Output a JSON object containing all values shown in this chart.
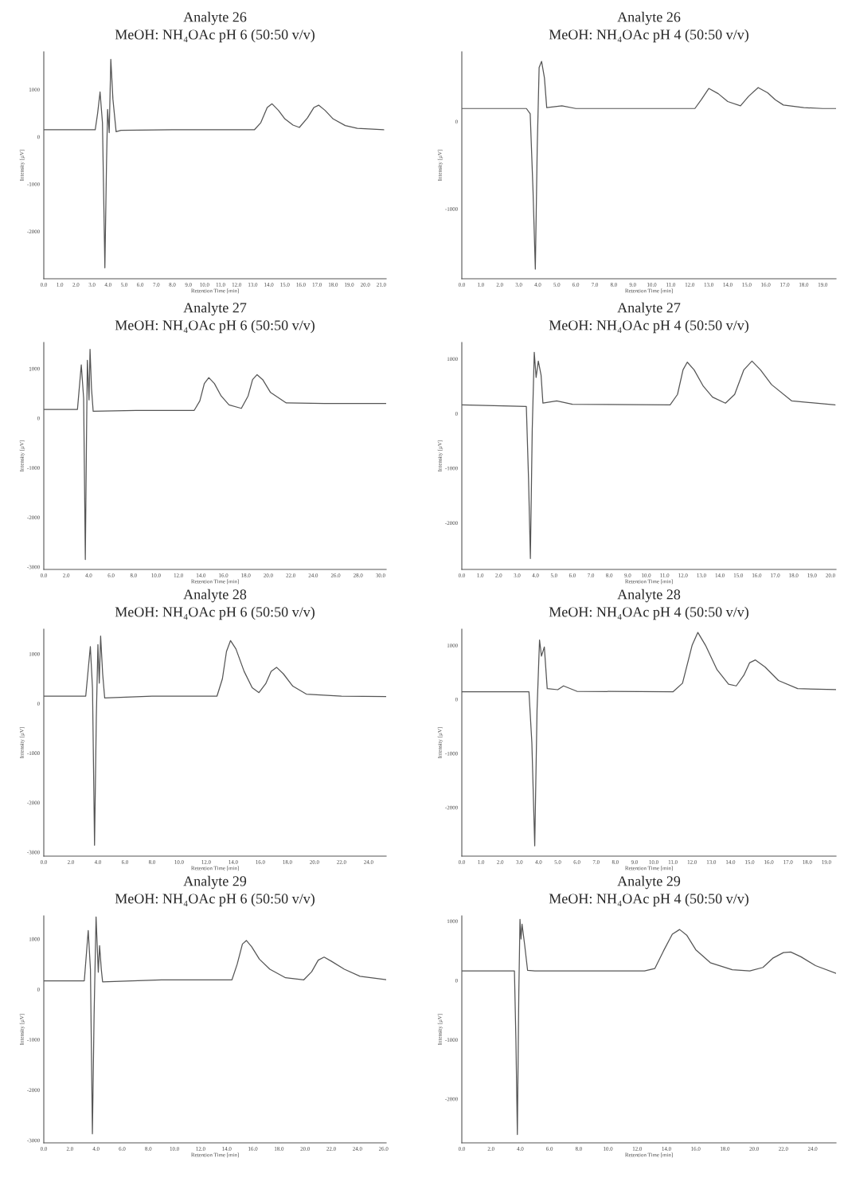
{
  "chart_data": [
    {
      "type": "line",
      "title": "Analyte 26",
      "subtitle": "MeOH: NH₄OAc pH 6 (50:50 v/v)",
      "xlabel": "Retention Time [min]",
      "ylabel": "Intensity [µV]",
      "xlim": [
        0,
        21.3
      ],
      "ylim": [
        -3000,
        1800
      ],
      "xticks": [
        {
          "value": 0,
          "label": "0.0"
        },
        {
          "value": 1,
          "label": "1.0"
        },
        {
          "value": 2,
          "label": "2.0"
        },
        {
          "value": 3,
          "label": "3.0"
        },
        {
          "value": 4,
          "label": "4.0"
        },
        {
          "value": 5,
          "label": "5.0"
        },
        {
          "value": 6,
          "label": "6.0"
        },
        {
          "value": 7,
          "label": "7.0"
        },
        {
          "value": 8,
          "label": "8.0"
        },
        {
          "value": 9,
          "label": "9.0"
        },
        {
          "value": 10,
          "label": "10.0"
        },
        {
          "value": 11,
          "label": "11.0"
        },
        {
          "value": 12,
          "label": "12.0"
        },
        {
          "value": 13,
          "label": "13.0"
        },
        {
          "value": 14,
          "label": "14.0"
        },
        {
          "value": 15,
          "label": "15.0"
        },
        {
          "value": 16,
          "label": "16.0"
        },
        {
          "value": 17,
          "label": "17.0"
        },
        {
          "value": 18,
          "label": "18.0"
        },
        {
          "value": 19,
          "label": "19.0"
        },
        {
          "value": 20,
          "label": "20.0"
        },
        {
          "value": 21,
          "label": "21.0"
        }
      ],
      "yticks": [
        -2000,
        -1000,
        0,
        1000
      ],
      "series": [
        {
          "color": "#555555",
          "x": [
            0,
            3.2,
            3.35,
            3.5,
            3.65,
            3.8,
            3.9,
            3.97,
            4.07,
            4.17,
            4.3,
            4.5,
            4.8,
            8,
            13.1,
            13.5,
            13.9,
            14.2,
            14.6,
            15.0,
            15.5,
            15.9,
            16.4,
            16.8,
            17.1,
            17.5,
            18.0,
            18.75,
            19.5,
            21.15
          ],
          "values": [
            150,
            150,
            500,
            950,
            300,
            -2770,
            -600,
            580,
            90,
            1640,
            800,
            110,
            140,
            150,
            150,
            300,
            620,
            700,
            560,
            380,
            250,
            200,
            400,
            620,
            670,
            560,
            380,
            240,
            180,
            150
          ]
        }
      ]
    },
    {
      "type": "line",
      "title": "Analyte 26",
      "subtitle": "MeOH: NH₄OAc pH 4 (50:50 v/v)",
      "xlabel": "Retention Time [min]",
      "ylabel": "Intensity [µV]",
      "xlim": [
        0,
        19.7
      ],
      "ylim": [
        -1800,
        800
      ],
      "xticks": [
        {
          "value": 0,
          "label": "0.0"
        },
        {
          "value": 1,
          "label": "1.0"
        },
        {
          "value": 2,
          "label": "2.0"
        },
        {
          "value": 3,
          "label": "3.0"
        },
        {
          "value": 4,
          "label": "4.0"
        },
        {
          "value": 5,
          "label": "5.0"
        },
        {
          "value": 6,
          "label": "6.0"
        },
        {
          "value": 7,
          "label": "7.0"
        },
        {
          "value": 8,
          "label": "8.0"
        },
        {
          "value": 9,
          "label": "9.0"
        },
        {
          "value": 10,
          "label": "10.0"
        },
        {
          "value": 11,
          "label": "11.0"
        },
        {
          "value": 12,
          "label": "12.0"
        },
        {
          "value": 13,
          "label": "13.0"
        },
        {
          "value": 14,
          "label": "14.0"
        },
        {
          "value": 15,
          "label": "15.0"
        },
        {
          "value": 16,
          "label": "16.0"
        },
        {
          "value": 17,
          "label": "17.0"
        },
        {
          "value": 18,
          "label": "18.0"
        },
        {
          "value": 19,
          "label": "19.0"
        }
      ],
      "yticks": [
        -1000,
        0
      ],
      "series": [
        {
          "color": "#555555",
          "x": [
            0,
            1.5,
            3.4,
            3.6,
            3.75,
            3.87,
            3.97,
            4.07,
            4.2,
            4.35,
            4.47,
            5.27,
            6,
            12.27,
            12.6,
            13.0,
            13.5,
            14.0,
            14.67,
            15.1,
            15.6,
            16.1,
            16.5,
            16.93,
            18,
            19.0,
            19.7
          ],
          "values": [
            150,
            150,
            150,
            90,
            -800,
            -1690,
            -300,
            620,
            690,
            500,
            160,
            180,
            150,
            150,
            250,
            380,
            320,
            230,
            180,
            290,
            390,
            330,
            250,
            190,
            160,
            150,
            150
          ]
        }
      ]
    },
    {
      "type": "line",
      "title": "Analyte 27",
      "subtitle": "MeOH: NH₄OAc pH 6 (50:50 v/v)",
      "xlabel": "Retention Time [min]",
      "ylabel": "Intensity [µV]",
      "xlim": [
        0,
        30.5
      ],
      "ylim": [
        -3050,
        1530
      ],
      "xticks": [
        {
          "value": 0,
          "label": "0.0"
        },
        {
          "value": 2,
          "label": "2.0"
        },
        {
          "value": 4,
          "label": "4.0"
        },
        {
          "value": 6,
          "label": "6.0"
        },
        {
          "value": 8,
          "label": "8.0"
        },
        {
          "value": 10,
          "label": "10.0"
        },
        {
          "value": 12,
          "label": "12.0"
        },
        {
          "value": 14,
          "label": "14.0"
        },
        {
          "value": 16,
          "label": "16.0"
        },
        {
          "value": 18,
          "label": "18.0"
        },
        {
          "value": 20,
          "label": "20.0"
        },
        {
          "value": 22,
          "label": "22.0"
        },
        {
          "value": 24,
          "label": "24.0"
        },
        {
          "value": 26,
          "label": "26.0"
        },
        {
          "value": 28,
          "label": "28.0"
        },
        {
          "value": 30,
          "label": "30.0"
        }
      ],
      "yticks": [
        -3000,
        -2000,
        -1000,
        0,
        1000
      ],
      "series": [
        {
          "color": "#555555",
          "x": [
            0,
            3.0,
            3.34,
            3.55,
            3.7,
            3.8,
            3.88,
            4.03,
            4.12,
            4.25,
            4.4,
            8.2,
            13.4,
            13.9,
            14.3,
            14.7,
            15.2,
            15.8,
            16.5,
            17.6,
            18.2,
            18.6,
            19.0,
            19.5,
            20.2,
            21.6,
            25,
            30.5
          ],
          "values": [
            180,
            180,
            1080,
            400,
            -2850,
            -500,
            1170,
            370,
            1390,
            600,
            140,
            160,
            160,
            350,
            700,
            820,
            700,
            450,
            270,
            200,
            450,
            780,
            880,
            780,
            520,
            310,
            300,
            300
          ]
        }
      ]
    },
    {
      "type": "line",
      "title": "Analyte 27",
      "subtitle": "MeOH: NH₄OAc pH 4 (50:50 v/v)",
      "xlabel": "Retention Time [min]",
      "ylabel": "Intensity [µV]",
      "xlim": [
        0,
        20.3
      ],
      "ylim": [
        -2850,
        1300
      ],
      "xticks": [
        {
          "value": 0,
          "label": "0.0"
        },
        {
          "value": 1,
          "label": "1.0"
        },
        {
          "value": 2,
          "label": "2.0"
        },
        {
          "value": 3,
          "label": "3.0"
        },
        {
          "value": 4,
          "label": "4.0"
        },
        {
          "value": 5,
          "label": "5.0"
        },
        {
          "value": 6,
          "label": "6.0"
        },
        {
          "value": 7,
          "label": "7.0"
        },
        {
          "value": 8,
          "label": "8.0"
        },
        {
          "value": 9,
          "label": "9.0"
        },
        {
          "value": 10,
          "label": "10.0"
        },
        {
          "value": 11,
          "label": "11.0"
        },
        {
          "value": 12,
          "label": "12.0"
        },
        {
          "value": 13,
          "label": "13.0"
        },
        {
          "value": 14,
          "label": "14.0"
        },
        {
          "value": 15,
          "label": "15.0"
        },
        {
          "value": 16,
          "label": "16.0"
        },
        {
          "value": 17,
          "label": "17.0"
        },
        {
          "value": 18,
          "label": "18.0"
        },
        {
          "value": 19,
          "label": "19.0"
        },
        {
          "value": 20,
          "label": "20.0"
        }
      ],
      "yticks": [
        -2000,
        -1000,
        0,
        1000
      ],
      "series": [
        {
          "color": "#555555",
          "x": [
            0,
            3.5,
            3.62,
            3.72,
            3.82,
            3.93,
            4.03,
            4.15,
            4.3,
            4.4,
            5.15,
            6,
            11.3,
            11.7,
            12.0,
            12.23,
            12.6,
            13.1,
            13.6,
            14.3,
            14.8,
            15.3,
            15.74,
            16.2,
            16.8,
            17.9,
            20.25
          ],
          "values": [
            160,
            130,
            -1200,
            -2650,
            -300,
            1120,
            660,
            960,
            700,
            190,
            230,
            170,
            160,
            350,
            800,
            940,
            800,
            500,
            300,
            190,
            350,
            800,
            960,
            800,
            530,
            230,
            160
          ]
        }
      ]
    },
    {
      "type": "line",
      "title": "Analyte 28",
      "subtitle": "MeOH: NH₄OAc pH 6 (50:50 v/v)",
      "xlabel": "Retention Time [min]",
      "ylabel": "Intensity [µV]",
      "xlim": [
        0,
        25.3
      ],
      "ylim": [
        -3080,
        1500
      ],
      "xticks": [
        {
          "value": 0,
          "label": "0.0"
        },
        {
          "value": 2,
          "label": "2.0"
        },
        {
          "value": 4,
          "label": "4.0"
        },
        {
          "value": 6,
          "label": "6.0"
        },
        {
          "value": 8,
          "label": "8.0"
        },
        {
          "value": 10,
          "label": "10.0"
        },
        {
          "value": 12,
          "label": "12.0"
        },
        {
          "value": 14,
          "label": "14.0"
        },
        {
          "value": 16,
          "label": "16.0"
        },
        {
          "value": 18,
          "label": "18.0"
        },
        {
          "value": 20,
          "label": "20.0"
        },
        {
          "value": 22,
          "label": "22.0"
        },
        {
          "value": 24,
          "label": "24.0"
        }
      ],
      "yticks": [
        -3000,
        -2000,
        -1000,
        0,
        1000
      ],
      "series": [
        {
          "color": "#555555",
          "x": [
            0,
            3.1,
            3.44,
            3.6,
            3.75,
            3.88,
            4.0,
            4.1,
            4.2,
            4.35,
            4.5,
            8,
            12.8,
            13.2,
            13.5,
            13.8,
            14.2,
            14.8,
            15.4,
            15.9,
            16.4,
            16.8,
            17.2,
            17.7,
            18.4,
            19.4,
            22,
            25.3
          ],
          "values": [
            150,
            150,
            1150,
            300,
            -2860,
            -300,
            1190,
            410,
            1360,
            600,
            110,
            150,
            150,
            500,
            1050,
            1270,
            1100,
            650,
            320,
            220,
            400,
            650,
            730,
            600,
            350,
            190,
            150,
            140
          ]
        }
      ]
    },
    {
      "type": "line",
      "title": "Analyte 28",
      "subtitle": "MeOH: NH₄OAc pH 4 (50:50 v/v)",
      "xlabel": "Retention Time [min]",
      "ylabel": "Intensity [µV]",
      "xlim": [
        0,
        19.5
      ],
      "ylim": [
        -2900,
        1300
      ],
      "xticks": [
        {
          "value": 0,
          "label": "0.0"
        },
        {
          "value": 1,
          "label": "1.0"
        },
        {
          "value": 2,
          "label": "2.0"
        },
        {
          "value": 3,
          "label": "3.0"
        },
        {
          "value": 4,
          "label": "4.0"
        },
        {
          "value": 5,
          "label": "5.0"
        },
        {
          "value": 6,
          "label": "6.0"
        },
        {
          "value": 7,
          "label": "7.0"
        },
        {
          "value": 8,
          "label": "8.0"
        },
        {
          "value": 9,
          "label": "9.0"
        },
        {
          "value": 10,
          "label": "10.0"
        },
        {
          "value": 11,
          "label": "11.0"
        },
        {
          "value": 12,
          "label": "12.0"
        },
        {
          "value": 13,
          "label": "13.0"
        },
        {
          "value": 14,
          "label": "14.0"
        },
        {
          "value": 15,
          "label": "15.0"
        },
        {
          "value": 16,
          "label": "16.0"
        },
        {
          "value": 17,
          "label": "17.0"
        },
        {
          "value": 18,
          "label": "18.0"
        },
        {
          "value": 19,
          "label": "19.0"
        }
      ],
      "yticks": [
        -2000,
        -1000,
        0,
        1000
      ],
      "series": [
        {
          "color": "#555555",
          "x": [
            0,
            3.5,
            3.65,
            3.8,
            3.92,
            4.05,
            4.15,
            4.3,
            4.45,
            5.0,
            5.3,
            6,
            11.0,
            11.5,
            12.0,
            12.3,
            12.7,
            13.3,
            13.9,
            14.3,
            14.7,
            15.0,
            15.3,
            15.8,
            16.5,
            17.5,
            19.5
          ],
          "values": [
            140,
            140,
            -800,
            -2710,
            -200,
            1100,
            800,
            970,
            200,
            180,
            250,
            150,
            140,
            300,
            1000,
            1240,
            1000,
            550,
            280,
            250,
            450,
            680,
            730,
            600,
            350,
            200,
            180
          ]
        }
      ]
    },
    {
      "type": "line",
      "title": "Analyte 29",
      "subtitle": "MeOH: NH₄OAc pH 6 (50:50 v/v)",
      "xlabel": "Retention Time [min]",
      "ylabel": "Intensity [µV]",
      "xlim": [
        0,
        26.2
      ],
      "ylim": [
        -3050,
        1460
      ],
      "xticks": [
        {
          "value": 0,
          "label": "0.0"
        },
        {
          "value": 2,
          "label": "2.0"
        },
        {
          "value": 4,
          "label": "4.0"
        },
        {
          "value": 6,
          "label": "6.0"
        },
        {
          "value": 8,
          "label": "8.0"
        },
        {
          "value": 10,
          "label": "10.0"
        },
        {
          "value": 12,
          "label": "12.0"
        },
        {
          "value": 14,
          "label": "14.0"
        },
        {
          "value": 16,
          "label": "16.0"
        },
        {
          "value": 18,
          "label": "18.0"
        },
        {
          "value": 20,
          "label": "20.0"
        },
        {
          "value": 22,
          "label": "22.0"
        },
        {
          "value": 24,
          "label": "24.0"
        },
        {
          "value": 26,
          "label": "26.0"
        }
      ],
      "yticks": [
        -3000,
        -2000,
        -1000,
        0,
        1000
      ],
      "series": [
        {
          "color": "#555555",
          "x": [
            0,
            3.1,
            3.4,
            3.57,
            3.72,
            3.85,
            4.0,
            4.17,
            4.27,
            4.4,
            4.5,
            9,
            14.4,
            14.8,
            15.2,
            15.5,
            15.9,
            16.5,
            17.3,
            18.5,
            19.9,
            20.5,
            21.0,
            21.45,
            22.0,
            23.0,
            24.2,
            26.2
          ],
          "values": [
            170,
            170,
            1170,
            400,
            -2870,
            -500,
            1440,
            340,
            870,
            400,
            150,
            190,
            190,
            500,
            900,
            970,
            850,
            600,
            400,
            230,
            190,
            350,
            580,
            640,
            560,
            400,
            260,
            190
          ]
        }
      ]
    },
    {
      "type": "line",
      "title": "Analyte 29",
      "subtitle": "MeOH: NH₄OAc pH 4 (50:50 v/v)",
      "xlabel": "Retention Time [min]",
      "ylabel": "Intensity [µV]",
      "xlim": [
        0,
        25.6
      ],
      "ylim": [
        -2740,
        1090
      ],
      "xticks": [
        {
          "value": 0,
          "label": "0.0"
        },
        {
          "value": 2,
          "label": "2.0"
        },
        {
          "value": 4,
          "label": "4.0"
        },
        {
          "value": 6,
          "label": "6.0"
        },
        {
          "value": 8,
          "label": "8.0"
        },
        {
          "value": 10,
          "label": "10.0"
        },
        {
          "value": 12,
          "label": "12.0"
        },
        {
          "value": 14,
          "label": "14.0"
        },
        {
          "value": 16,
          "label": "16.0"
        },
        {
          "value": 18,
          "label": "18.0"
        },
        {
          "value": 20,
          "label": "20.0"
        },
        {
          "value": 22,
          "label": "22.0"
        },
        {
          "value": 24,
          "label": "24.0"
        }
      ],
      "yticks": [
        -2000,
        -1000,
        0,
        1000
      ],
      "series": [
        {
          "color": "#555555",
          "x": [
            0,
            3.6,
            3.7,
            3.8,
            3.9,
            3.98,
            4.05,
            4.12,
            4.3,
            4.5,
            5,
            12.5,
            13.2,
            13.8,
            14.4,
            14.9,
            15.4,
            16,
            17,
            18.5,
            19.7,
            20.6,
            21.3,
            22.0,
            22.5,
            23.2,
            24.2,
            25.6
          ],
          "values": [
            160,
            160,
            -1000,
            -2600,
            -200,
            1030,
            700,
            950,
            600,
            170,
            160,
            160,
            200,
            500,
            780,
            860,
            760,
            520,
            300,
            180,
            160,
            220,
            380,
            470,
            480,
            400,
            250,
            120
          ]
        }
      ]
    }
  ]
}
